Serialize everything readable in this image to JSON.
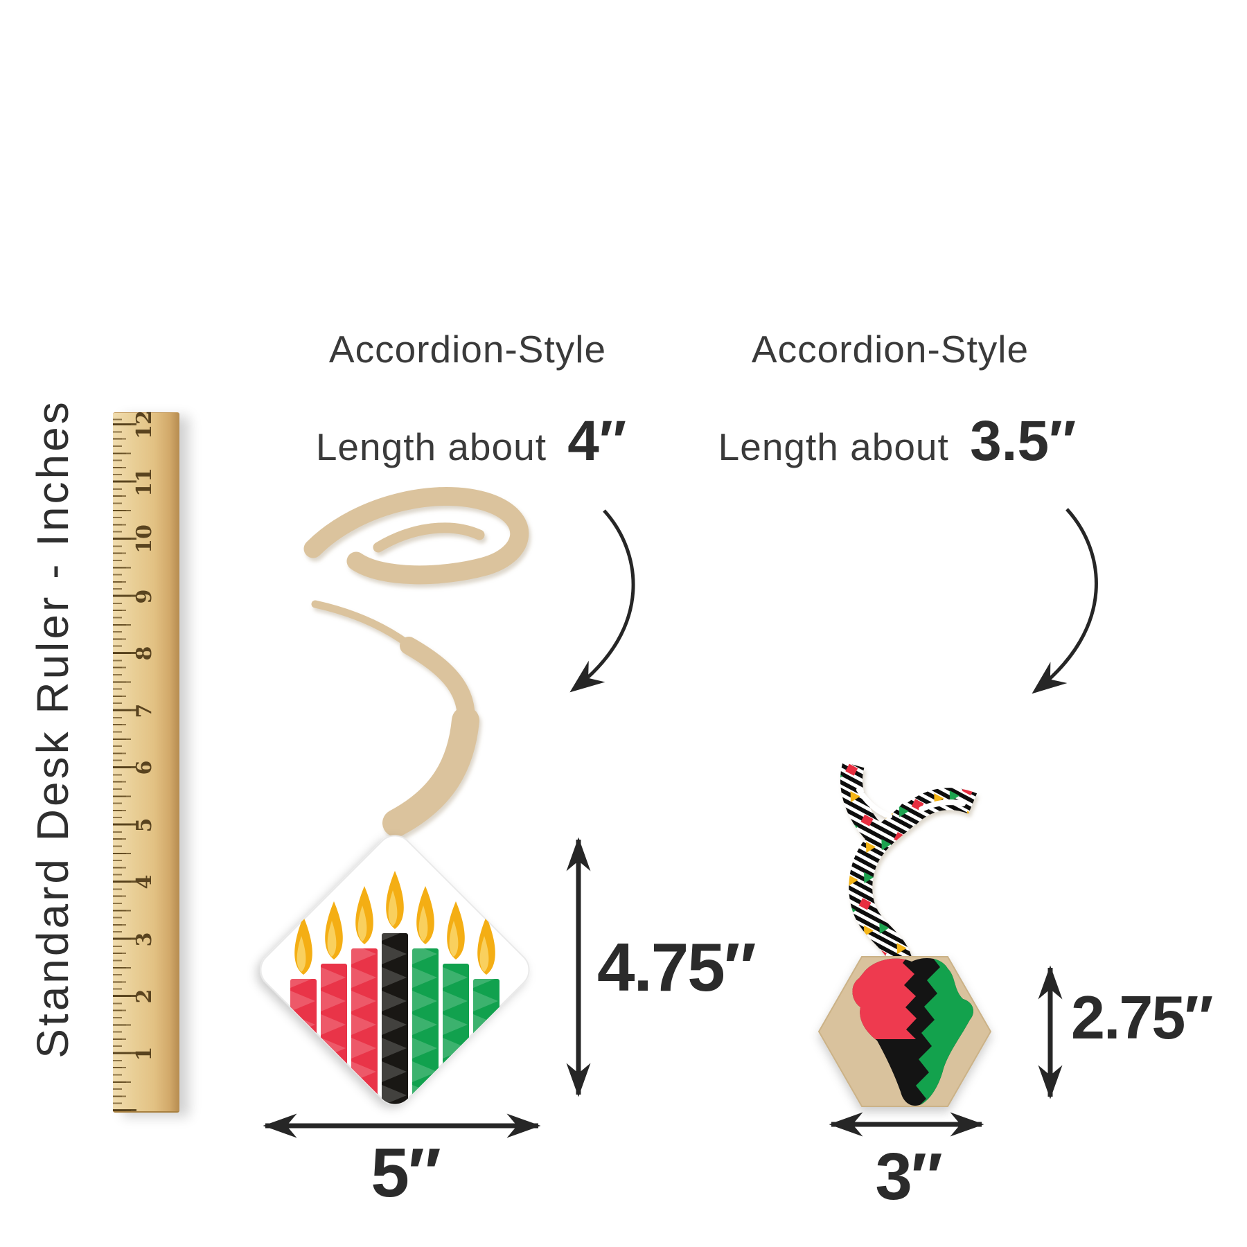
{
  "palette": {
    "arrow_black": "#262626",
    "wood_light": "#ecd29e",
    "wood_mid": "#e2c183",
    "wood_dark": "#b68c50",
    "kraft_swirl": "#dbc39d",
    "card_white": "#ffffff",
    "candle_red": "#e93448",
    "candle_black": "#191714",
    "candle_green": "#11a14e",
    "flame_yellow": "#f4ae14",
    "flame_light": "#f9d05e",
    "hex_kraft": "#d9c29d",
    "africa_red": "#ee3a4f",
    "africa_black": "#141414",
    "africa_green": "#13a24d"
  },
  "ruler": {
    "label": "Standard Desk Ruler - Inches",
    "numbers": [
      "12",
      "11",
      "10",
      "9",
      "8",
      "7",
      "6",
      "5",
      "4",
      "3",
      "2",
      "1"
    ]
  },
  "items": [
    {
      "header": "Accordion-Style",
      "length_prefix": "Length about",
      "length_value": "4″",
      "height_label": "4.75″",
      "width_label": "5″"
    },
    {
      "header": "Accordion-Style",
      "length_prefix": "Length about",
      "length_value": "3.5″",
      "height_label": "2.75″",
      "width_label": "3″"
    }
  ]
}
